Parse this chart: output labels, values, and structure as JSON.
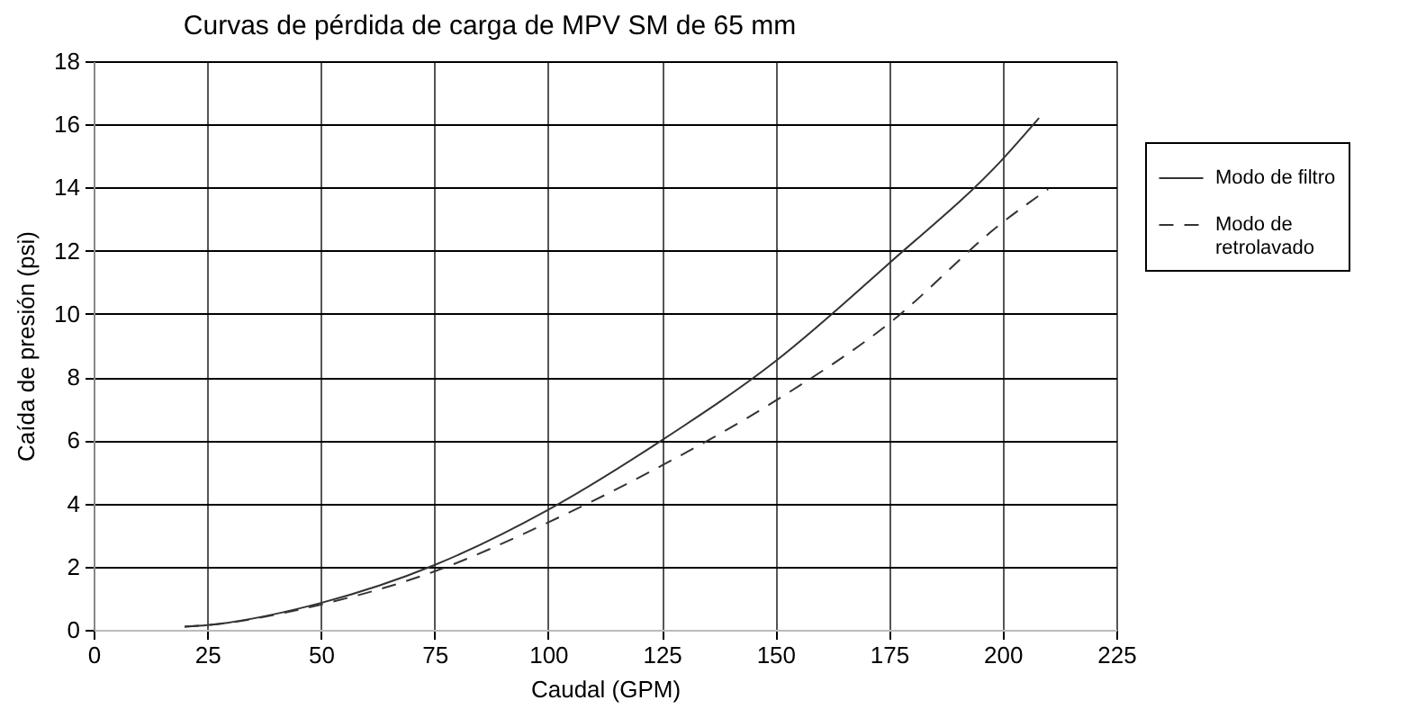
{
  "chart_data": {
    "type": "line",
    "title": "Curvas de pérdida de carga de MPV SM de 65 mm",
    "xlabel": "Caudal (GPM)",
    "ylabel": "Caída de presión (psi)",
    "xlim": [
      0,
      225
    ],
    "xticks": [
      0,
      25,
      50,
      75,
      100,
      125,
      150,
      175,
      200,
      225
    ],
    "ylim": [
      0,
      18
    ],
    "yticks": [
      0,
      2,
      4,
      6,
      8,
      10,
      12,
      14,
      16,
      18
    ],
    "grid": true,
    "legend": "right",
    "series": [
      {
        "name": "Modo de filtro",
        "color": "#333333",
        "line_style": "solid",
        "x": [
          20,
          25,
          50,
          75,
          100,
          125,
          150,
          175,
          200,
          208
        ],
        "values": [
          0.1,
          0.15,
          0.85,
          2.05,
          3.8,
          6.0,
          8.5,
          11.6,
          14.9,
          16.2
        ]
      },
      {
        "name": "Modo de retrolavado",
        "color": "#333333",
        "line_style": "dashed",
        "x": [
          20,
          25,
          50,
          75,
          100,
          125,
          150,
          175,
          200,
          210
        ],
        "values": [
          0.1,
          0.15,
          0.8,
          1.85,
          3.4,
          5.2,
          7.25,
          9.7,
          12.9,
          13.95
        ]
      }
    ]
  }
}
